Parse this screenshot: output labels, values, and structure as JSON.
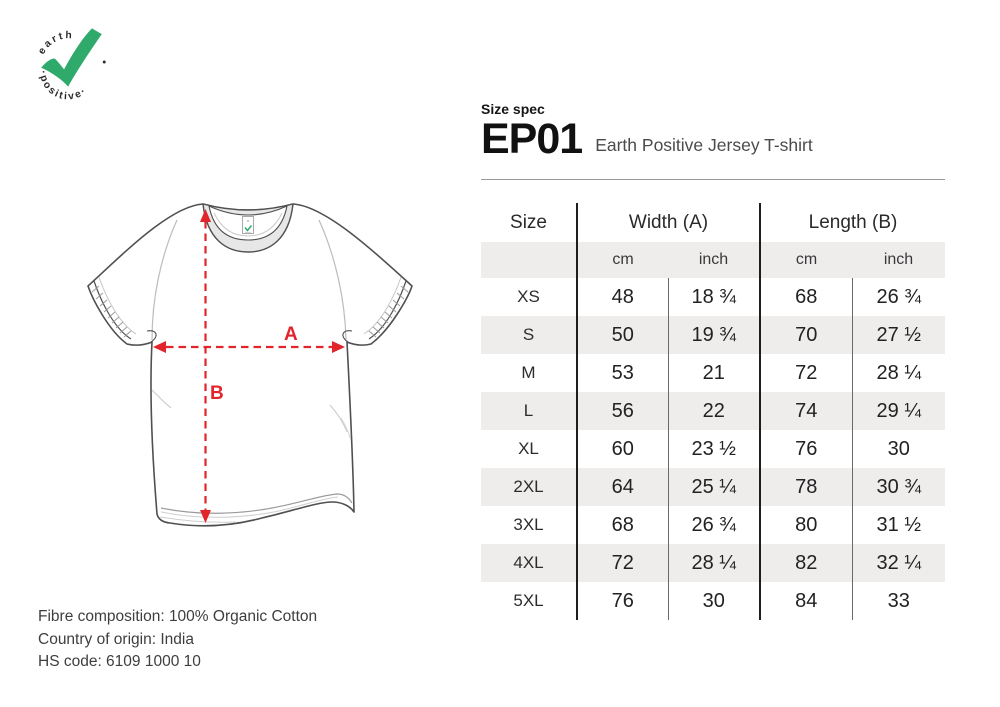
{
  "logo": {
    "top_text": "earth",
    "bottom_text": "·positive·",
    "check_color": "#2faa6b"
  },
  "header": {
    "eyebrow": "Size spec",
    "product_code": "EP01",
    "product_name": "Earth Positive Jersey T-shirt"
  },
  "diagram": {
    "width_label": "A",
    "length_label": "B",
    "arrow_color": "#e2242b"
  },
  "table": {
    "col_groups": [
      {
        "label": "Size"
      },
      {
        "label": "Width (A)"
      },
      {
        "label": "Length (B)"
      }
    ],
    "unit_headers": [
      "cm",
      "inch",
      "cm",
      "inch"
    ],
    "rows": [
      {
        "size": "XS",
        "width_cm": "48",
        "width_inch": "18 ¾",
        "length_cm": "68",
        "length_inch": "26 ¾"
      },
      {
        "size": "S",
        "width_cm": "50",
        "width_inch": "19 ¾",
        "length_cm": "70",
        "length_inch": "27 ½"
      },
      {
        "size": "M",
        "width_cm": "53",
        "width_inch": "21",
        "length_cm": "72",
        "length_inch": "28 ¼"
      },
      {
        "size": "L",
        "width_cm": "56",
        "width_inch": "22",
        "length_cm": "74",
        "length_inch": "29 ¼"
      },
      {
        "size": "XL",
        "width_cm": "60",
        "width_inch": "23 ½",
        "length_cm": "76",
        "length_inch": "30"
      },
      {
        "size": "2XL",
        "width_cm": "64",
        "width_inch": "25 ¼",
        "length_cm": "78",
        "length_inch": "30 ¾"
      },
      {
        "size": "3XL",
        "width_cm": "68",
        "width_inch": "26 ¾",
        "length_cm": "80",
        "length_inch": "31 ½"
      },
      {
        "size": "4XL",
        "width_cm": "72",
        "width_inch": "28 ¼",
        "length_cm": "82",
        "length_inch": "32 ¼"
      },
      {
        "size": "5XL",
        "width_cm": "76",
        "width_inch": "30",
        "length_cm": "84",
        "length_inch": "33"
      }
    ]
  },
  "footer": {
    "fibre": "Fibre composition: 100% Organic Cotton",
    "origin": "Country of origin: India",
    "hs_code": "HS code: 6109 1000 10"
  }
}
